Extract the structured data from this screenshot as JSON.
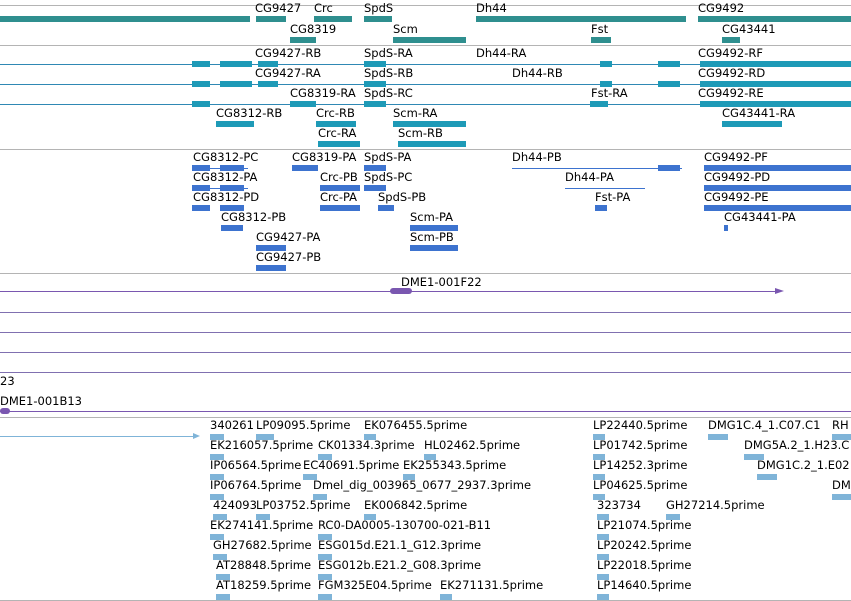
{
  "colors": {
    "gene": "#2f8f8f",
    "rna_flybase": "#1e9ab7",
    "rna_flybase_line": "#2f88b4",
    "rna_gff": "#3d73cf",
    "rna_gff_line": "#3d73cf",
    "clone": "#7a57b0",
    "est": "#7fb4d8",
    "separator": "#b4b4b4"
  },
  "tracks": {
    "genes": {
      "labels": [
        "CG9427",
        "Crc",
        "SpdS",
        "Dh44",
        "CG9492",
        "CG8319",
        "Scm",
        "Fst",
        "CG43441"
      ]
    },
    "transcripts_flybase": {
      "labels": [
        "CG9427-RB",
        "SpdS-RA",
        "Dh44-RA",
        "CG9492-RF",
        "CG9427-RA",
        "SpdS-RB",
        "Dh44-RB",
        "CG9492-RD",
        "CG8319-RA",
        "SpdS-RC",
        "Fst-RA",
        "CG9492-RE",
        "CG8312-RB",
        "Crc-RB",
        "Scm-RA",
        "CG43441-RA",
        "Crc-RA",
        "Scm-RB"
      ]
    },
    "transcripts_gff": {
      "labels": [
        "CG8312-PC",
        "CG8319-PA",
        "SpdS-PA",
        "Dh44-PB",
        "CG9492-PF",
        "CG8312-PA",
        "Crc-PB",
        "SpdS-PC",
        "Dh44-PA",
        "CG9492-PD",
        "CG8312-PD",
        "Crc-PA",
        "SpdS-PB",
        "Fst-PA",
        "CG9492-PE",
        "CG8312-PB",
        "Scm-PA",
        "CG43441-PA",
        "CG9427-PA",
        "Scm-PB",
        "CG9427-PB"
      ]
    },
    "clones": {
      "labels": [
        "DME1-001F22",
        "23",
        "DME1-001B13"
      ]
    },
    "ests": {
      "labels": [
        "340261",
        "LP09095.5prime",
        "EK076455.5prime",
        "LP22440.5prime",
        "DMG1C.4_1.C07.C1",
        "RH",
        "EK216057.5prime",
        "CK01334.3prime",
        "HL02462.5prime",
        "LP01742.5prime",
        "DMG5A.2_1.H23.C",
        "IP06564.5prime",
        "EC40691.5prime",
        "EK255343.5prime",
        "LP14252.3prime",
        "DMG1C.2_1.E02",
        "IP06764.5prime",
        "Dmel_dig_003965_0677_2937.3prime",
        "LP04625.5prime",
        "DM",
        "424093",
        "LP03752.5prime",
        "EK006842.5prime",
        "323734",
        "GH27214.5prime",
        "EK274141.5prime",
        "RC0-DA0005-130700-021-B11",
        "LP21074.5prime",
        "GH27682.5prime",
        "ESG015d.E21.1_G12.3prime",
        "LP20242.5prime",
        "AT28848.5prime",
        "ESG012b.E21.2_G08.3prime",
        "LP22018.5prime",
        "AT18259.5prime",
        "FGM325E04.5prime",
        "EK271131.5prime",
        "LP14640.5prime"
      ]
    }
  }
}
